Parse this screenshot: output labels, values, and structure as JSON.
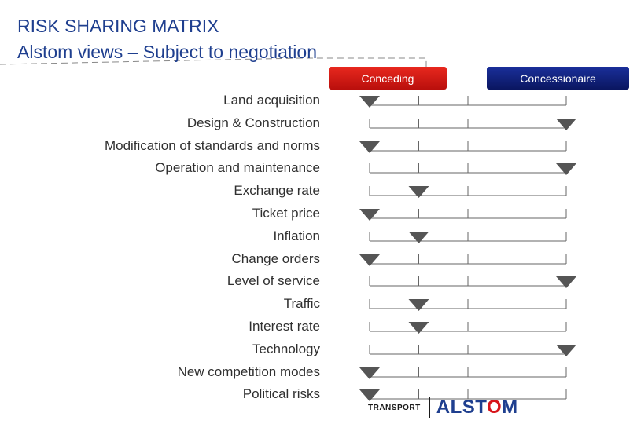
{
  "title_line1": "RISK SHARING MATRIX",
  "title_line2": "Alstom views – Subject to negotiation",
  "headers": {
    "left": "Conceding",
    "right": "Concessionaire"
  },
  "scale_positions": 5,
  "risks": [
    {
      "label": "Land acquisition",
      "position": 1
    },
    {
      "label": "Design & Construction",
      "position": 5
    },
    {
      "label": "Modification of standards and norms",
      "position": 1
    },
    {
      "label": "Operation and maintenance",
      "position": 5
    },
    {
      "label": "Exchange rate",
      "position": 2
    },
    {
      "label": "Ticket price",
      "position": 1
    },
    {
      "label": "Inflation",
      "position": 2
    },
    {
      "label": "Change orders",
      "position": 1
    },
    {
      "label": "Level of  service",
      "position": 5
    },
    {
      "label": "Traffic",
      "position": 2
    },
    {
      "label": "Interest rate",
      "position": 2
    },
    {
      "label": "Technology",
      "position": 5
    },
    {
      "label": "New competition modes",
      "position": 1
    },
    {
      "label": "Political risks",
      "position": 1
    }
  ],
  "footer": {
    "division": "TRANSPORT",
    "logo_pre": "ALST",
    "logo_o": "O",
    "logo_post": "M"
  },
  "colors": {
    "conceding": "#d71a14",
    "concessionaire": "#0d1b6e",
    "title": "#1f3f8f",
    "marker": "#555555"
  }
}
